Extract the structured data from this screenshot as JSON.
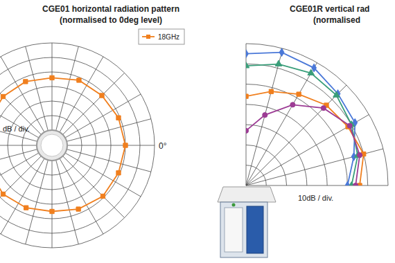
{
  "chart_data": [
    {
      "type": "polar",
      "title": "CGE01 horizontal radiation pattern",
      "subtitle": "(normalised to 0deg level)",
      "theta": [
        0,
        22.5,
        45,
        67.5,
        90,
        112.5,
        135,
        157.5,
        180,
        202.5,
        225,
        247.5,
        270,
        292.5,
        315,
        337.5
      ],
      "thetalim": [
        0,
        360
      ],
      "thetaticks": [
        0,
        15,
        30,
        45,
        60,
        75,
        90,
        105,
        120,
        135,
        150,
        165,
        180,
        195,
        210,
        225,
        240,
        255,
        270,
        285,
        300,
        315,
        330,
        345
      ],
      "rlim": [
        -20,
        10
      ],
      "rticks": [
        -20,
        -15,
        -10,
        -5,
        0,
        5,
        10
      ],
      "rlabel": "dB / div.",
      "annotations": [
        "0°"
      ],
      "grid": true,
      "tick_labels": false,
      "legend": "upper right",
      "series": [
        {
          "name": "18GHz",
          "color": "#f07f1e",
          "marker": "square",
          "values": [
            0,
            -0.5,
            -1,
            -1,
            -2,
            -1.5,
            -1.5,
            -2,
            -2,
            -2,
            -1.5,
            -2,
            -2.5,
            -1.5,
            -0.5,
            -0.5
          ]
        }
      ]
    },
    {
      "type": "polar",
      "title": "CGE01R vertical rad",
      "subtitle": "(normalised",
      "theta": [
        90,
        75,
        60,
        45,
        30,
        15,
        0
      ],
      "thetalim": [
        0,
        90
      ],
      "thetaticks": [
        0,
        15,
        30,
        45,
        60,
        75,
        90
      ],
      "rlim": [
        -60,
        10
      ],
      "rticks": [
        -60,
        -50,
        -40,
        -30,
        -20,
        -10,
        0,
        10
      ],
      "rlabel": "10dB / div.",
      "grid": true,
      "tick_labels": false,
      "series": [
        {
          "color": "#4a78d8",
          "marker": "diamond",
          "values": [
            5,
            8,
            7,
            4,
            2,
            -5,
            -10
          ]
        },
        {
          "color": "#3a9e7a",
          "marker": "triangle",
          "values": [
            -1,
            2,
            4,
            3,
            0,
            -3,
            -8
          ]
        },
        {
          "color": "#f07f1e",
          "marker": "square",
          "values": [
            -16,
            -12,
            -8,
            -4,
            -2,
            0,
            -4
          ]
        },
        {
          "color": "#9c3b94",
          "marker": "circle",
          "values": [
            -33,
            -24,
            -14,
            -6,
            -1,
            -2,
            -6
          ]
        }
      ]
    }
  ]
}
